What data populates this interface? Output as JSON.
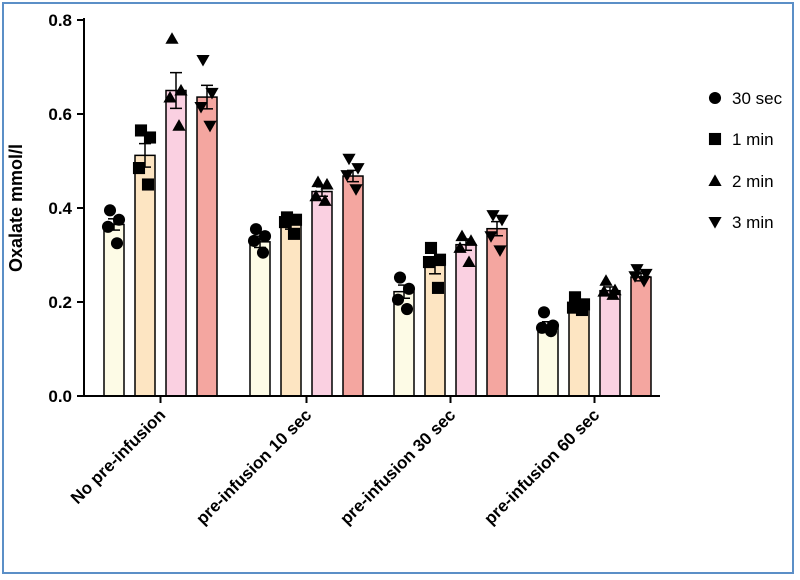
{
  "chart_data": {
    "type": "bar",
    "title": "",
    "xlabel": "",
    "ylabel": "Oxalate mmol/l",
    "ylim": [
      0,
      0.8
    ],
    "yticks": [
      "0.0",
      "0.2",
      "0.4",
      "0.6",
      "0.8"
    ],
    "categories": [
      "No pre-infusion",
      "pre-infusion 10 sec",
      "pre-infusion 30 sec",
      "pre-infusion 60 sec"
    ],
    "legend_position": "right",
    "grid": false,
    "series": [
      {
        "name": "30 sec",
        "marker": "circle",
        "color": "#fdfbe6",
        "values": [
          0.365,
          0.328,
          0.222,
          0.148
        ],
        "sem": [
          0.012,
          0.012,
          0.014,
          0.01
        ],
        "points": [
          [
            0.395,
            0.375,
            0.36,
            0.325
          ],
          [
            0.355,
            0.34,
            0.33,
            0.305
          ],
          [
            0.252,
            0.228,
            0.205,
            0.185
          ],
          [
            0.178,
            0.15,
            0.145,
            0.138
          ]
        ]
      },
      {
        "name": "1 min",
        "marker": "square",
        "color": "#fde5c2",
        "values": [
          0.512,
          0.365,
          0.278,
          0.188
        ],
        "sem": [
          0.025,
          0.01,
          0.018,
          0.007
        ],
        "points": [
          [
            0.565,
            0.55,
            0.485,
            0.45
          ],
          [
            0.38,
            0.375,
            0.37,
            0.345
          ],
          [
            0.315,
            0.29,
            0.285,
            0.23
          ],
          [
            0.21,
            0.195,
            0.188,
            0.183
          ]
        ]
      },
      {
        "name": "2 min",
        "marker": "triangle-up",
        "color": "#fad0e1",
        "values": [
          0.65,
          0.435,
          0.322,
          0.224
        ],
        "sem": [
          0.038,
          0.01,
          0.012,
          0.008
        ],
        "points": [
          [
            0.76,
            0.65,
            0.635,
            0.575
          ],
          [
            0.455,
            0.45,
            0.425,
            0.415
          ],
          [
            0.34,
            0.33,
            0.315,
            0.285
          ],
          [
            0.245,
            0.225,
            0.222,
            0.215
          ]
        ]
      },
      {
        "name": "3 min",
        "marker": "triangle-down",
        "color": "#f4a6a0",
        "values": [
          0.636,
          0.468,
          0.356,
          0.253
        ],
        "sem": [
          0.025,
          0.012,
          0.015,
          0.008
        ],
        "points": [
          [
            0.715,
            0.645,
            0.615,
            0.575
          ],
          [
            0.505,
            0.485,
            0.47,
            0.44
          ],
          [
            0.385,
            0.375,
            0.34,
            0.31
          ],
          [
            0.27,
            0.26,
            0.255,
            0.245
          ]
        ]
      }
    ]
  }
}
